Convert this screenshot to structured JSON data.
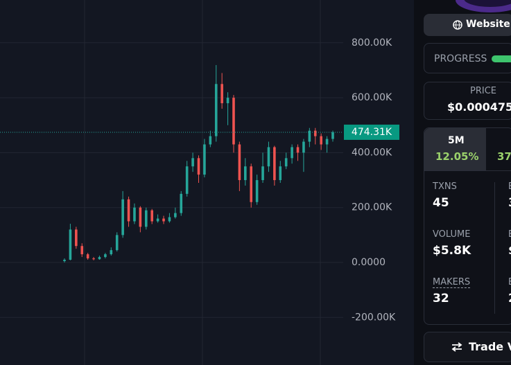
{
  "chart_data": {
    "type": "candlestick",
    "open": [
      5000,
      10000,
      120000,
      60000,
      30000,
      15000,
      12000,
      20000,
      30000,
      45000,
      100000,
      230000,
      150000,
      200000,
      130000,
      190000,
      150000,
      160000,
      150000,
      165000,
      180000,
      250000,
      350000,
      380000,
      320000,
      430000,
      460000,
      650000,
      580000,
      600000,
      430000,
      300000,
      350000,
      220000,
      300000,
      350000,
      420000,
      300000,
      350000,
      380000,
      420000,
      400000,
      440000,
      480000,
      460000,
      430000,
      450000
    ],
    "high": [
      15000,
      141000,
      130000,
      70000,
      35000,
      20000,
      25000,
      35000,
      55000,
      110000,
      260000,
      240000,
      215000,
      205000,
      200000,
      195000,
      175000,
      170000,
      180000,
      200000,
      260000,
      370000,
      400000,
      390000,
      450000,
      480000,
      719000,
      690000,
      620000,
      610000,
      440000,
      380000,
      360000,
      320000,
      400000,
      440000,
      425000,
      370000,
      400000,
      430000,
      430000,
      450000,
      490000,
      490000,
      470000,
      460000,
      480000
    ],
    "low": [
      0,
      8000,
      50000,
      20000,
      10000,
      8000,
      10000,
      15000,
      25000,
      40000,
      90000,
      130000,
      140000,
      110000,
      120000,
      140000,
      145000,
      140000,
      145000,
      160000,
      170000,
      240000,
      330000,
      290000,
      310000,
      420000,
      440000,
      560000,
      500000,
      400000,
      260000,
      280000,
      200000,
      210000,
      290000,
      330000,
      280000,
      290000,
      340000,
      360000,
      370000,
      330000,
      420000,
      430000,
      410000,
      400000,
      440000
    ],
    "close": [
      10000,
      120000,
      60000,
      30000,
      15000,
      12000,
      20000,
      30000,
      45000,
      100000,
      230000,
      150000,
      200000,
      130000,
      190000,
      150000,
      160000,
      150000,
      165000,
      180000,
      250000,
      350000,
      380000,
      320000,
      430000,
      460000,
      650000,
      580000,
      600000,
      430000,
      300000,
      350000,
      220000,
      300000,
      350000,
      420000,
      300000,
      350000,
      380000,
      420000,
      400000,
      440000,
      480000,
      460000,
      430000,
      450000,
      474310
    ],
    "up_color": "#26a69a",
    "down_color": "#ef5350",
    "ylim": [
      -373300,
      955900
    ],
    "yticks": [
      {
        "value": -200000,
        "label": "-200.00K"
      },
      {
        "value": 0,
        "label": "0.0000"
      },
      {
        "value": 200000,
        "label": "200.00K"
      },
      {
        "value": 400000,
        "label": "400.00K"
      },
      {
        "value": 600000,
        "label": "600.00K"
      },
      {
        "value": 800000,
        "label": "800.00K"
      }
    ],
    "last_price": {
      "value": 474310,
      "label": "474.31K"
    },
    "grid": true
  },
  "panel": {
    "website": "Website",
    "progress": "PROGRESS",
    "price_label": "PRICE",
    "price": "$0.000475",
    "tabs": [
      {
        "label": "5M",
        "change": "12.05%"
      },
      {
        "change": "37"
      }
    ],
    "stats": [
      {
        "label": "TXNS",
        "value": "45"
      },
      {
        "label": "VOLUME",
        "value": "$5.8K"
      },
      {
        "label": "MAKERS",
        "value": "32"
      }
    ],
    "stats_right": [
      {
        "label": "B",
        "value": "3"
      },
      {
        "label": "B",
        "value": "$"
      },
      {
        "label": "B",
        "value": "2"
      }
    ],
    "trade": "Trade V"
  }
}
